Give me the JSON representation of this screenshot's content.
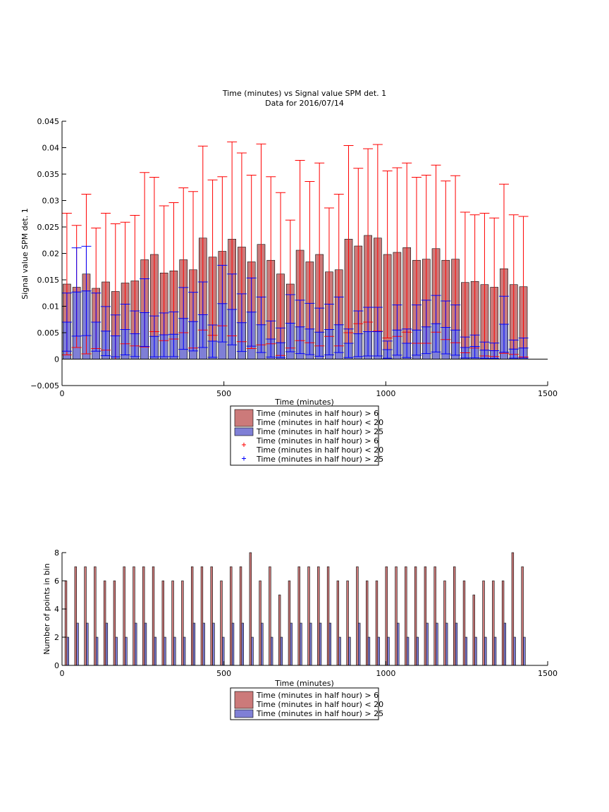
{
  "chart_data": [
    {
      "type": "bar",
      "title": "Time (minutes) vs Signal value SPM det. 1",
      "subtitle": "Data for 2016/07/14",
      "xlabel": "Time (minutes)",
      "ylabel": "Signal value SPM det. 1",
      "xlim": [
        0,
        1500
      ],
      "ylim": [
        -0.005,
        0.045
      ],
      "xticks": [
        0,
        500,
        1000,
        1500
      ],
      "yticks": [
        -0.005,
        0,
        0.005,
        0.01,
        0.015,
        0.02,
        0.025,
        0.03,
        0.035,
        0.04,
        0.045
      ],
      "xtick_labels": [
        "0",
        "500",
        "1000",
        "1500"
      ],
      "ytick_labels": [
        "−0.005",
        "0",
        "0.005",
        "0.01",
        "0.015",
        "0.02",
        "0.025",
        "0.03",
        "0.035",
        "0.04",
        "0.045"
      ],
      "grid": false,
      "legend_position": "below-axes",
      "x": [
        15,
        45,
        75,
        105,
        135,
        165,
        195,
        225,
        255,
        285,
        315,
        345,
        375,
        405,
        435,
        465,
        495,
        525,
        555,
        585,
        615,
        645,
        675,
        705,
        735,
        765,
        795,
        825,
        855,
        885,
        915,
        945,
        975,
        1005,
        1035,
        1065,
        1095,
        1125,
        1155,
        1185,
        1215,
        1245,
        1275,
        1305,
        1335,
        1365,
        1395,
        1425
      ],
      "series": [
        {
          "legend_lines": [
            "Time (minutes in half hour) > 6",
            "Time (minutes in half hour) < 20"
          ],
          "color": "#cc7a7a",
          "error_color": "#ff0000",
          "values": [
            0.0142,
            0.0136,
            0.0161,
            0.0134,
            0.0146,
            0.0128,
            0.0144,
            0.0148,
            0.0188,
            0.0198,
            0.0163,
            0.0167,
            0.0188,
            0.0169,
            0.0229,
            0.0193,
            0.0204,
            0.0227,
            0.0212,
            0.0184,
            0.0217,
            0.0187,
            0.0161,
            0.0142,
            0.0206,
            0.0184,
            0.0198,
            0.0165,
            0.0169,
            0.0227,
            0.0214,
            0.0234,
            0.0229,
            0.0198,
            0.0202,
            0.0211,
            0.0187,
            0.0189,
            0.0209,
            0.0187,
            0.0189,
            0.0145,
            0.0147,
            0.0141,
            0.0136,
            0.0171,
            0.0141,
            0.0137
          ],
          "error_upper": [
            0.0276,
            0.0253,
            0.0312,
            0.0248,
            0.0276,
            0.0256,
            0.0259,
            0.0272,
            0.0353,
            0.0344,
            0.029,
            0.0296,
            0.0324,
            0.0317,
            0.0403,
            0.0339,
            0.0345,
            0.0411,
            0.039,
            0.0348,
            0.0407,
            0.0345,
            0.0315,
            0.0263,
            0.0376,
            0.0336,
            0.0371,
            0.0286,
            0.0312,
            0.0404,
            0.0361,
            0.0398,
            0.0406,
            0.0356,
            0.0362,
            0.0371,
            0.0344,
            0.0348,
            0.0367,
            0.0337,
            0.0347,
            0.0278,
            0.0273,
            0.0276,
            0.0267,
            0.0331,
            0.0273,
            0.027
          ],
          "error_lower": [
            0.0008,
            0.0022,
            0.001,
            0.002,
            0.0017,
            0.0,
            0.0029,
            0.0025,
            0.0023,
            0.0052,
            0.0035,
            0.0038,
            0.005,
            0.0021,
            0.0055,
            0.0045,
            0.0063,
            0.0044,
            0.0033,
            0.002,
            0.0027,
            0.0029,
            0.0007,
            0.0021,
            0.0035,
            0.0031,
            0.0025,
            0.0043,
            0.0025,
            0.005,
            0.0067,
            0.007,
            0.0053,
            0.004,
            0.0043,
            0.0051,
            0.003,
            0.003,
            0.0051,
            0.0037,
            0.0031,
            0.0012,
            0.0021,
            0.0006,
            0.0005,
            0.0011,
            0.0009,
            0.0004
          ]
        },
        {
          "legend_lines": [
            "Time (minutes in half hour) > 25"
          ],
          "color": "#7f7fd6",
          "error_color": "#0000ff",
          "values": [
            0.007,
            0.0127,
            0.0129,
            0.007,
            0.0053,
            0.0044,
            0.0056,
            0.0048,
            0.0088,
            0.0043,
            0.0046,
            0.0047,
            0.0077,
            0.0071,
            0.0084,
            0.0034,
            0.0105,
            0.0094,
            0.0069,
            0.0089,
            0.0065,
            0.0038,
            0.0031,
            0.0068,
            0.0061,
            0.0057,
            0.0051,
            0.0056,
            0.0065,
            0.003,
            0.0048,
            0.0052,
            0.0052,
            0.0018,
            0.0055,
            0.003,
            0.0055,
            0.0061,
            0.0067,
            0.006,
            0.0055,
            0.0022,
            0.0024,
            0.0017,
            0.0016,
            0.0066,
            0.0019,
            0.0021
          ]
        }
      ],
      "legend": {
        "entries": [
          {
            "kind": "patch",
            "color": "#cc7a7a",
            "lines": [
              "Time (minutes in half hour) > 6",
              "Time (minutes in half hour) < 20"
            ]
          },
          {
            "kind": "patch",
            "color": "#7f7fd6",
            "lines": [
              "Time (minutes in half hour) > 25"
            ]
          },
          {
            "kind": "marker",
            "color": "#ff0000",
            "symbol": "+",
            "lines": [
              "Time (minutes in half hour) > 6",
              "Time (minutes in half hour) < 20"
            ]
          },
          {
            "kind": "marker",
            "color": "#0000ff",
            "symbol": "+",
            "lines": [
              "Time (minutes in half hour) > 25"
            ]
          }
        ]
      }
    },
    {
      "type": "bar",
      "xlabel": "Time (minutes)",
      "ylabel": "Number of points in bin",
      "xlim": [
        0,
        1500
      ],
      "ylim": [
        0,
        8
      ],
      "xticks": [
        0,
        500,
        1000,
        1500
      ],
      "yticks": [
        0,
        2,
        4,
        6,
        8
      ],
      "xtick_labels": [
        "0",
        "500",
        "1000",
        "1500"
      ],
      "ytick_labels": [
        "0",
        "2",
        "4",
        "6",
        "8"
      ],
      "grid": false,
      "legend_position": "below-axes",
      "x": [
        15,
        45,
        75,
        105,
        135,
        165,
        195,
        225,
        255,
        285,
        315,
        345,
        375,
        405,
        435,
        465,
        495,
        525,
        555,
        585,
        615,
        645,
        675,
        705,
        735,
        765,
        795,
        825,
        855,
        885,
        915,
        945,
        975,
        1005,
        1035,
        1065,
        1095,
        1125,
        1155,
        1185,
        1215,
        1245,
        1275,
        1305,
        1335,
        1365,
        1395,
        1425
      ],
      "series": [
        {
          "legend_lines": [
            "Time (minutes in half hour) > 6",
            "Time (minutes in half hour) < 20"
          ],
          "color": "#cc7a7a",
          "values": [
            6,
            7,
            7,
            7,
            6,
            6,
            7,
            7,
            7,
            7,
            6,
            6,
            6,
            7,
            7,
            7,
            6,
            7,
            7,
            8,
            6,
            7,
            5,
            6,
            7,
            7,
            7,
            7,
            6,
            6,
            7,
            6,
            6,
            7,
            7,
            7,
            7,
            7,
            7,
            6,
            7,
            6,
            5,
            6,
            6,
            6,
            8,
            7
          ]
        },
        {
          "legend_lines": [
            "Time (minutes in half hour) > 25"
          ],
          "color": "#7f7fd6",
          "values": [
            2,
            3,
            3,
            2,
            3,
            2,
            2,
            3,
            3,
            2,
            2,
            2,
            2,
            3,
            3,
            3,
            2,
            3,
            3,
            2,
            3,
            2,
            2,
            3,
            3,
            3,
            3,
            3,
            2,
            2,
            3,
            2,
            2,
            2,
            3,
            2,
            2,
            3,
            3,
            3,
            3,
            2,
            2,
            2,
            2,
            3,
            2,
            2
          ]
        }
      ],
      "legend": {
        "entries": [
          {
            "kind": "patch",
            "color": "#cc7a7a",
            "lines": [
              "Time (minutes in half hour) > 6",
              "Time (minutes in half hour) < 20"
            ]
          },
          {
            "kind": "patch",
            "color": "#7f7fd6",
            "lines": [
              "Time (minutes in half hour) > 25"
            ]
          }
        ]
      }
    }
  ]
}
